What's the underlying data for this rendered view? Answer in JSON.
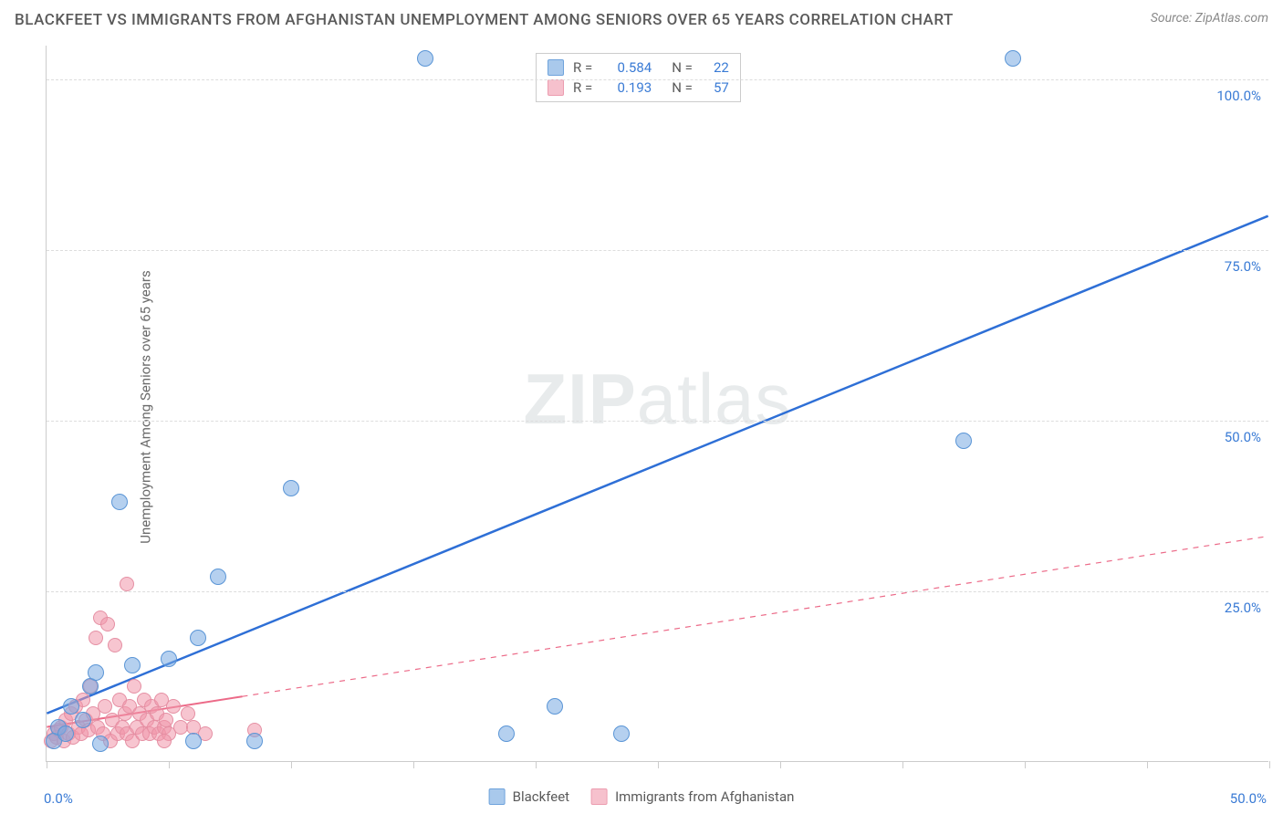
{
  "title": "BLACKFEET VS IMMIGRANTS FROM AFGHANISTAN UNEMPLOYMENT AMONG SENIORS OVER 65 YEARS CORRELATION CHART",
  "source": "Source: ZipAtlas.com",
  "watermark_a": "ZIP",
  "watermark_b": "atlas",
  "y_axis_label": "Unemployment Among Seniors over 65 years",
  "chart": {
    "type": "scatter",
    "background_color": "#ffffff",
    "grid_color": "#dddddd",
    "axis_color": "#cccccc",
    "xlim": [
      0,
      50
    ],
    "ylim": [
      0,
      105
    ],
    "x_ticks": [
      0,
      5,
      10,
      15,
      20,
      25,
      30,
      35,
      40,
      45,
      50
    ],
    "x_tick_labels": {
      "0": "0.0%",
      "50": "50.0%"
    },
    "y_ticks": [
      25,
      50,
      75,
      100
    ],
    "y_tick_labels": {
      "25": "25.0%",
      "50": "50.0%",
      "75": "75.0%",
      "100": "100.0%"
    },
    "x_label_color": "#3a7bd5",
    "y_label_color": "#3a7bd5",
    "axis_label_fontsize": 15,
    "title_fontsize": 17
  },
  "series": {
    "blackfeet": {
      "label": "Blackfeet",
      "marker_fill": "rgba(120,170,225,0.55)",
      "marker_stroke": "#5a95d6",
      "marker_radius": 9,
      "swatch_fill": "#a9c9ec",
      "swatch_border": "#6fa3dc",
      "line_color": "#2e6fd6",
      "line_width": 2.5,
      "line_dash": "none",
      "r_value": "0.584",
      "n_value": "22",
      "trend": {
        "x1": 0,
        "y1": 7,
        "x2": 50,
        "y2": 80,
        "solid_until_x": 50
      },
      "points": [
        [
          0.3,
          3
        ],
        [
          0.5,
          5
        ],
        [
          0.8,
          4
        ],
        [
          1.0,
          8
        ],
        [
          1.5,
          6
        ],
        [
          1.8,
          11
        ],
        [
          2.0,
          13
        ],
        [
          2.2,
          2.5
        ],
        [
          3.0,
          38
        ],
        [
          3.5,
          14
        ],
        [
          5.0,
          15
        ],
        [
          6.0,
          3
        ],
        [
          6.2,
          18
        ],
        [
          7.0,
          27
        ],
        [
          8.5,
          3
        ],
        [
          10.0,
          40
        ],
        [
          15.5,
          103
        ],
        [
          18.8,
          4
        ],
        [
          20.8,
          8
        ],
        [
          23.5,
          4
        ],
        [
          37.5,
          47
        ],
        [
          39.5,
          103
        ]
      ]
    },
    "afghan": {
      "label": "Immigrants from Afghanistan",
      "marker_fill": "rgba(240,150,170,0.55)",
      "marker_stroke": "#e58fa3",
      "marker_radius": 8,
      "swatch_fill": "#f6c1cd",
      "swatch_border": "#ec9db0",
      "line_color": "#ec6a88",
      "line_width": 2,
      "line_dash": "6,6",
      "r_value": "0.193",
      "n_value": "57",
      "trend": {
        "x1": 0,
        "y1": 5,
        "x2": 50,
        "y2": 33,
        "solid_until_x": 8
      },
      "points": [
        [
          0.2,
          3
        ],
        [
          0.3,
          4
        ],
        [
          0.4,
          3.5
        ],
        [
          0.5,
          4.5
        ],
        [
          0.6,
          5
        ],
        [
          0.7,
          3
        ],
        [
          0.8,
          6
        ],
        [
          0.9,
          4
        ],
        [
          1.0,
          7
        ],
        [
          1.1,
          3.5
        ],
        [
          1.2,
          8
        ],
        [
          1.3,
          5
        ],
        [
          1.4,
          4
        ],
        [
          1.5,
          9
        ],
        [
          1.6,
          6
        ],
        [
          1.7,
          4.5
        ],
        [
          1.8,
          11
        ],
        [
          1.9,
          7
        ],
        [
          2.0,
          18
        ],
        [
          2.1,
          5
        ],
        [
          2.2,
          21
        ],
        [
          2.3,
          4
        ],
        [
          2.4,
          8
        ],
        [
          2.5,
          20
        ],
        [
          2.6,
          3
        ],
        [
          2.7,
          6
        ],
        [
          2.8,
          17
        ],
        [
          2.9,
          4
        ],
        [
          3.0,
          9
        ],
        [
          3.1,
          5
        ],
        [
          3.2,
          7
        ],
        [
          3.3,
          4
        ],
        [
          3.4,
          8
        ],
        [
          3.5,
          3
        ],
        [
          3.6,
          11
        ],
        [
          3.7,
          5
        ],
        [
          3.8,
          7
        ],
        [
          3.9,
          4
        ],
        [
          4.0,
          9
        ],
        [
          4.1,
          6
        ],
        [
          4.2,
          4
        ],
        [
          4.3,
          8
        ],
        [
          4.4,
          5
        ],
        [
          4.5,
          7
        ],
        [
          4.6,
          4
        ],
        [
          4.7,
          9
        ],
        [
          4.8,
          5
        ],
        [
          4.9,
          6
        ],
        [
          5.0,
          4
        ],
        [
          5.2,
          8
        ],
        [
          5.5,
          5
        ],
        [
          3.3,
          26
        ],
        [
          5.8,
          7
        ],
        [
          6.0,
          5
        ],
        [
          6.5,
          4
        ],
        [
          8.5,
          4.5
        ],
        [
          4.8,
          3
        ]
      ]
    }
  },
  "stats_labels": {
    "r": "R =",
    "n": "N ="
  }
}
